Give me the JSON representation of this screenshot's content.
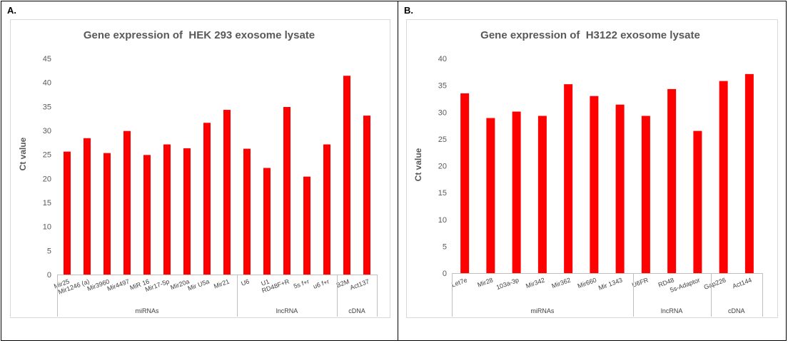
{
  "panels": [
    {
      "label": "A."
    },
    {
      "label": "B."
    }
  ],
  "chart_data": [
    {
      "type": "bar",
      "title": "Gene expression of  HEK 293 exosome lysate",
      "ylabel": "Ct value",
      "ylim": [
        0,
        45
      ],
      "yticks": [
        0,
        5,
        10,
        15,
        20,
        25,
        30,
        35,
        40,
        45
      ],
      "grid": false,
      "bar_color": "#ff0000",
      "categories": [
        "Mir25",
        "Mir1246 (a)",
        "Mir3960",
        "Mir4497",
        "MiR 16",
        "Mir17-5p",
        "Mir20a",
        "Mir U5a",
        "Mir21",
        "U6",
        "U1",
        "RD48F+R",
        "5s f+r",
        "u6 f+r",
        "B2M",
        "Act137"
      ],
      "values": [
        25.6,
        28.4,
        25.3,
        29.9,
        24.9,
        27.1,
        26.3,
        31.6,
        34.3,
        26.2,
        22.2,
        34.9,
        20.4,
        27.1,
        41.4,
        33.1
      ],
      "groups": [
        {
          "label": "miRNAs",
          "count": 9
        },
        {
          "label": "lncRNA",
          "count": 5
        },
        {
          "label": "cDNA",
          "count": 2
        }
      ]
    },
    {
      "type": "bar",
      "title": "Gene expression of  H3122 exosome lysate",
      "ylabel": "Ct value",
      "ylim": [
        0,
        40
      ],
      "yticks": [
        0,
        5,
        10,
        15,
        20,
        25,
        30,
        35,
        40
      ],
      "grid": false,
      "bar_color": "#ff0000",
      "categories": [
        "Let7e",
        "Mir28",
        "103a-3p",
        "Mir342",
        "Mir362",
        "Mir660",
        "Mir 1343",
        "U6FR",
        "RD48",
        "5s-Adaptor",
        "Gap226",
        "Act144"
      ],
      "values": [
        33.5,
        28.9,
        30.1,
        29.3,
        35.2,
        33.0,
        31.4,
        29.3,
        34.3,
        26.5,
        35.8,
        37.1
      ],
      "groups": [
        {
          "label": "miRNAs",
          "count": 7
        },
        {
          "label": "lncRNA",
          "count": 3
        },
        {
          "label": "cDNA",
          "count": 2
        }
      ]
    }
  ]
}
